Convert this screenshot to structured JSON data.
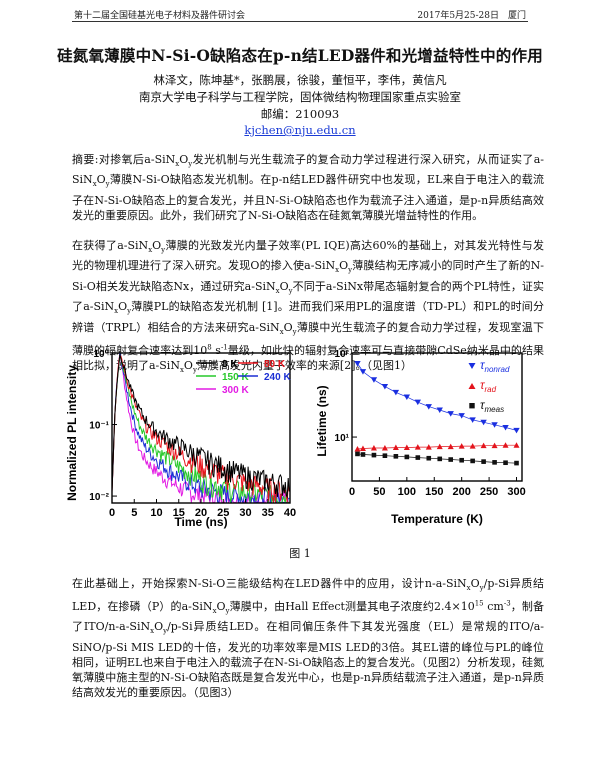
{
  "header": {
    "left": "第十二届全国硅基光电子材料及器件研讨会",
    "right": "2017年5月25-28日　厦门"
  },
  "title": "硅氮氧薄膜中N-Si-O缺陷态在p-n结LED器件和光增益特性中的作用",
  "authors": "林泽文，陈坤基*，张鹏展，徐骏，董恒平，李伟，黄信凡",
  "affiliation": "南京大学电子科学与工程学院，固体微结构物理国家重点实验室",
  "postcode": "邮编：210093",
  "email": "kjchen@nju.edu.cn",
  "abstract": "摘要:对掺氧后a-SiNxOy发光机制与光生载流子的复合动力学过程进行深入研究，从而证实了a-SiNxOy薄膜N-Si-O缺陷态发光机制。在p-n结LED器件研究中也发现，EL来自于电注入的载流子在N-Si-O缺陷态上的复合发光，并且N-Si-O缺陷态也作为载流子注入通道，是p-n异质结高效发光的重要原因。此外，我们研究了N-Si-O缺陷态在硅氮氧薄膜光增益特性的作用。",
  "para1": "在获得了a-SiNxOy薄膜的光致发光内量子效率(PL IQE)高达60%的基础上，对其发光特性与发光的物理机理进行了深入研究。发现O的掺入使a-SiNxOy薄膜结构无序减小的同时产生了新的N-Si-O相关发光缺陷态Nx，通过研究a-SiNxOy不同于a-SiNx带尾态辐射复合的两个PL特性，证实了a-SiNxOy薄膜PL的缺陷态发光机制 [1]。进而我们采用PL的温度谱（TD-PL）和PL的时间分辨谱（TRPL）相结合的方法来研究a-SiNxOy薄膜中光生载流子的复合动力学过程，发现室温下薄膜的辐射复合速率达到10⁸ s⁻¹量级，如此快的辐射复合速率可与直接带隙CdSe纳米晶中的结果相比拟，说明了a-SiNxOy薄膜高发光内量子效率的来源[2]。（见图1）",
  "figure_caption": "图 1",
  "para2": "在此基础上，开始探索N-Si-O三能级结构在LED器件中的应用，设计n-a-SiNxOy/p-Si异质结LED，在掺磷（P）的a-SiNxOy薄膜中，由Hall Effect测量其电子浓度约2.4×10¹⁵ cm⁻³，制备了ITO/n-a-SiNxOy/p-Si异质结LED。在相同偏压条件下其发光强度（EL）是常规的ITO/a-SiNO/p-Si MIS LED的十倍，发光的功率效率是MIS LED的3倍。其EL谱的峰位与PL的峰位相同，证明EL也来自于电注入的载流子在N-Si-O缺陷态上的复合发光。（见图2）分析发现，硅氮氧薄膜中施主型的N-Si-O缺陷态既是复合发光中心，也是p-n异质结载流子注入通道，是p-n异质结高效发光的重要原因。（见图3）",
  "colors": {
    "8K": "#000000",
    "80K": "#e8141c",
    "150K": "#27c82a",
    "240K": "#1b2fd4",
    "300K": "#e21be3",
    "tau_nonrad": "#1a2fe0",
    "tau_rad": "#e3141c",
    "tau_meas": "#111111"
  },
  "chart_data": [
    {
      "type": "line",
      "title": "",
      "xlabel": "Time (ns)",
      "ylabel": "Normalized PL intensity",
      "xlim": [
        0,
        40
      ],
      "ylim": [
        0.008,
        1
      ],
      "yscale": "log",
      "xticks": [
        "0",
        "5",
        "10",
        "15",
        "20",
        "25",
        "30",
        "35",
        "40"
      ],
      "yticks": [
        "10⁻²",
        "10⁻¹",
        "10⁰"
      ],
      "legend_position": "top-right",
      "series": [
        {
          "name": "8 K",
          "tau_fast": 1.6,
          "tau_slow": 10,
          "a_fast": 0.85,
          "floor": 0.011
        },
        {
          "name": "80 K",
          "tau_fast": 1.5,
          "tau_slow": 9,
          "a_fast": 0.87,
          "floor": 0.01
        },
        {
          "name": "150 K",
          "tau_fast": 1.3,
          "tau_slow": 7,
          "a_fast": 0.89,
          "floor": 0.0095
        },
        {
          "name": "240 K",
          "tau_fast": 1.1,
          "tau_slow": 6,
          "a_fast": 0.91,
          "floor": 0.009
        },
        {
          "name": "300 K",
          "tau_fast": 0.9,
          "tau_slow": 5,
          "a_fast": 0.93,
          "floor": 0.0085
        }
      ]
    },
    {
      "type": "scatter",
      "title": "",
      "xlabel": "Temperature (K)",
      "ylabel": "Lifetime (ns)",
      "xlim": [
        0,
        310
      ],
      "ylim": [
        3,
        100
      ],
      "yscale": "log",
      "xticks": [
        "0",
        "50",
        "100",
        "150",
        "200",
        "250",
        "300"
      ],
      "yticks": [
        "10¹",
        "10²"
      ],
      "legend_position": "top-right",
      "series": [
        {
          "name": "τnonrad",
          "x": [
            10,
            20,
            40,
            60,
            80,
            100,
            120,
            140,
            160,
            180,
            200,
            220,
            240,
            260,
            280,
            300
          ],
          "y": [
            75,
            60,
            48,
            40,
            34,
            30,
            26,
            23,
            21,
            19,
            18,
            16,
            15,
            14,
            13,
            12
          ]
        },
        {
          "name": "τrad",
          "x": [
            10,
            20,
            40,
            60,
            80,
            100,
            120,
            140,
            160,
            180,
            200,
            220,
            240,
            260,
            280,
            300
          ],
          "y": [
            7.2,
            7.3,
            7.4,
            7.4,
            7.5,
            7.5,
            7.6,
            7.6,
            7.7,
            7.7,
            7.8,
            7.8,
            7.9,
            7.9,
            8.0,
            8.0
          ]
        },
        {
          "name": "τmeas",
          "x": [
            10,
            20,
            40,
            60,
            80,
            100,
            120,
            140,
            160,
            180,
            200,
            220,
            240,
            260,
            280,
            300
          ],
          "y": [
            6.3,
            6.2,
            6.1,
            6.0,
            5.9,
            5.8,
            5.7,
            5.6,
            5.5,
            5.4,
            5.3,
            5.2,
            5.1,
            5.0,
            4.95,
            4.9
          ]
        }
      ]
    }
  ]
}
